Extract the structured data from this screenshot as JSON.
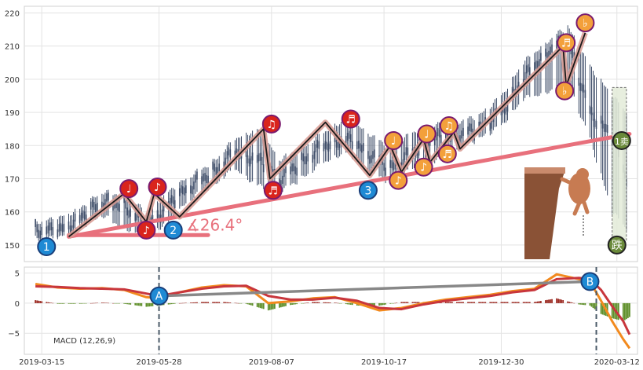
{
  "colors": {
    "panel_bg": "#ffffff",
    "grid": "#e3e3e3",
    "candle": "#3b4a66",
    "trend_line": "#e8707c",
    "zigzag": "#1a1a1a",
    "zigzag_shade": "#d89a92",
    "red_marker": "#d9241c",
    "orange_marker": "#f3a03b",
    "blue_marker": "#1f8ad4",
    "marker_border": "#7a1a6e",
    "green_marker": "#6a8a3a",
    "macd_line": "#f28a1e",
    "signal_line": "#c8363c",
    "hist_pos": "#9c2a22",
    "hist_neg": "#5f8f2a",
    "divergence_line": "#888888",
    "vline": "#4a5a68",
    "rect_fill": "#e3ecd9",
    "bear_brown": "#8a5236"
  },
  "chart_data": [
    {
      "type": "candlestick",
      "panel": "price",
      "ylim": [
        145,
        222
      ],
      "yticks": [
        150,
        160,
        170,
        180,
        190,
        200,
        210,
        220
      ],
      "ytick_labels": [
        "150",
        "160",
        "170",
        "180",
        "190",
        "200",
        "210",
        "220"
      ],
      "xlim": [
        "2019-03-04",
        "2020-03-25"
      ],
      "x_dates": [
        "2019-03-11",
        "2019-03-25",
        "2019-04-08",
        "2019-04-22",
        "2019-05-06",
        "2019-05-20",
        "2019-06-03",
        "2019-06-17",
        "2019-07-01",
        "2019-07-15",
        "2019-07-29",
        "2019-08-12",
        "2019-08-26",
        "2019-09-09",
        "2019-09-23",
        "2019-10-07",
        "2019-10-21",
        "2019-11-04",
        "2019-11-18",
        "2019-12-02",
        "2019-12-16",
        "2019-12-30",
        "2020-01-13",
        "2020-01-27",
        "2020-02-10",
        "2020-02-24",
        "2020-03-09",
        "2020-03-18"
      ],
      "close": [
        155,
        154,
        158,
        163,
        162,
        156,
        162,
        168,
        172,
        178,
        176,
        170,
        175,
        180,
        182,
        178,
        173,
        178,
        182,
        183,
        185,
        190,
        200,
        208,
        212,
        190,
        183,
        170
      ],
      "high": [
        157,
        158,
        161,
        166,
        165,
        160,
        166,
        171,
        175,
        182,
        185,
        176,
        179,
        184,
        188,
        184,
        179,
        184,
        186,
        187,
        189,
        195,
        205,
        211,
        216,
        204,
        195,
        190
      ],
      "low": [
        152,
        152,
        155,
        159,
        155,
        153,
        157,
        164,
        168,
        173,
        168,
        166,
        170,
        175,
        178,
        172,
        169,
        173,
        175,
        179,
        182,
        186,
        194,
        196,
        199,
        182,
        160,
        155
      ],
      "trend_line": [
        {
          "x": "2019-04-01",
          "y": 152.5
        },
        {
          "x": "2020-03-20",
          "y": 183.5
        }
      ],
      "flat_line": [
        {
          "x": "2019-04-01",
          "y": 153.0
        },
        {
          "x": "2019-06-28",
          "y": 153.0
        }
      ],
      "angle_label": "∡26.4°",
      "angle_anchor": {
        "x": "2019-06-14",
        "y": 154.3
      },
      "zigzag": [
        {
          "x": "2019-04-01",
          "y": 152.5
        },
        {
          "x": "2019-05-06",
          "y": 165.5
        },
        {
          "x": "2019-05-20",
          "y": 157
        },
        {
          "x": "2019-05-25",
          "y": 165.5
        },
        {
          "x": "2019-06-10",
          "y": 158.5
        },
        {
          "x": "2019-08-02",
          "y": 185
        },
        {
          "x": "2019-08-06",
          "y": 170
        },
        {
          "x": "2019-09-10",
          "y": 187
        },
        {
          "x": "2019-10-08",
          "y": 171
        },
        {
          "x": "2019-10-21",
          "y": 180
        },
        {
          "x": "2019-10-28",
          "y": 172
        },
        {
          "x": "2019-11-11",
          "y": 182
        },
        {
          "x": "2019-11-15",
          "y": 175
        },
        {
          "x": "2019-11-30",
          "y": 184
        },
        {
          "x": "2019-12-04",
          "y": 179
        },
        {
          "x": "2020-02-07",
          "y": 210
        },
        {
          "x": "2020-02-09",
          "y": 198
        },
        {
          "x": "2020-02-21",
          "y": 214
        }
      ],
      "markers": [
        {
          "x": "2019-03-18",
          "y": 149.5,
          "kind": "blue",
          "label": "1"
        },
        {
          "x": "2019-05-09",
          "y": 167,
          "kind": "red",
          "label": "♩"
        },
        {
          "x": "2019-05-20",
          "y": 154.5,
          "kind": "red",
          "label": "♪"
        },
        {
          "x": "2019-05-27",
          "y": 167.5,
          "kind": "red",
          "label": "♪"
        },
        {
          "x": "2019-06-06",
          "y": 154.5,
          "kind": "blue",
          "label": "2"
        },
        {
          "x": "2019-08-07",
          "y": 186.5,
          "kind": "red",
          "label": "♫"
        },
        {
          "x": "2019-08-08",
          "y": 166.5,
          "kind": "red",
          "label": "♬"
        },
        {
          "x": "2019-09-26",
          "y": 188,
          "kind": "red",
          "label": "♬"
        },
        {
          "x": "2019-10-07",
          "y": 166.5,
          "kind": "blue",
          "label": "3"
        },
        {
          "x": "2019-10-23",
          "y": 181.5,
          "kind": "orange",
          "label": "♩"
        },
        {
          "x": "2019-10-26",
          "y": 169.5,
          "kind": "orange",
          "label": "♪"
        },
        {
          "x": "2019-11-13",
          "y": 183.5,
          "kind": "orange",
          "label": "♩"
        },
        {
          "x": "2019-11-11",
          "y": 173.5,
          "kind": "orange",
          "label": "♪"
        },
        {
          "x": "2019-11-27",
          "y": 186,
          "kind": "orange",
          "label": "♫"
        },
        {
          "x": "2019-11-26",
          "y": 177.5,
          "kind": "orange",
          "label": "♬"
        },
        {
          "x": "2020-02-09",
          "y": 211,
          "kind": "orange",
          "label": "♬"
        },
        {
          "x": "2020-02-08",
          "y": 196.5,
          "kind": "orange",
          "label": "♭"
        },
        {
          "x": "2020-02-21",
          "y": 217,
          "kind": "orange",
          "label": "♭"
        },
        {
          "x": "2020-03-15",
          "y": 181.5,
          "kind": "green",
          "label": "1卖"
        },
        {
          "x": "2020-03-12",
          "y": 150,
          "kind": "green",
          "label": "跌"
        }
      ],
      "sell_box": {
        "x0": "2020-03-09",
        "x1": "2020-03-18",
        "y0": 151.5,
        "y1": 197.5
      }
    },
    {
      "type": "macd",
      "panel": "indicator",
      "label": "MACD (12,26,9)",
      "ylim": [
        -8.5,
        6
      ],
      "yticks": [
        -5,
        0,
        5
      ],
      "ytick_labels": [
        "−5",
        "0",
        "5"
      ],
      "x": [
        "2019-03-11",
        "2019-03-25",
        "2019-04-08",
        "2019-04-22",
        "2019-05-06",
        "2019-05-20",
        "2019-05-28",
        "2019-06-10",
        "2019-06-24",
        "2019-07-08",
        "2019-07-22",
        "2019-08-05",
        "2019-08-19",
        "2019-09-02",
        "2019-09-16",
        "2019-09-30",
        "2019-10-14",
        "2019-10-28",
        "2019-11-11",
        "2019-11-25",
        "2019-12-09",
        "2019-12-23",
        "2020-01-06",
        "2020-01-20",
        "2020-02-03",
        "2020-02-17",
        "2020-02-24",
        "2020-03-02",
        "2020-03-09",
        "2020-03-16",
        "2020-03-20"
      ],
      "macd": [
        3.2,
        2.6,
        2.4,
        2.5,
        2.2,
        1.0,
        0.8,
        1.8,
        2.6,
        3.0,
        2.8,
        0.0,
        0.3,
        0.8,
        1.0,
        0.0,
        -1.2,
        -0.8,
        0.0,
        0.6,
        1.0,
        1.4,
        2.0,
        2.4,
        4.8,
        4.0,
        3.6,
        0.4,
        -3.0,
        -6.0,
        -7.5
      ],
      "signal": [
        2.8,
        2.7,
        2.5,
        2.4,
        2.3,
        1.6,
        1.2,
        1.8,
        2.4,
        2.8,
        2.9,
        1.2,
        0.6,
        0.6,
        0.9,
        0.4,
        -0.8,
        -1.0,
        -0.2,
        0.4,
        0.8,
        1.2,
        1.8,
        2.2,
        4.0,
        4.2,
        4.0,
        2.2,
        -0.5,
        -3.0,
        -5.2
      ],
      "histogram": [
        0.5,
        -0.1,
        -0.1,
        0.1,
        -0.1,
        -0.6,
        -0.4,
        0.0,
        0.2,
        0.2,
        -0.1,
        -1.2,
        -0.3,
        0.2,
        0.1,
        -0.4,
        -0.4,
        0.2,
        0.2,
        0.2,
        0.2,
        0.2,
        0.2,
        0.2,
        0.8,
        -0.2,
        -0.4,
        -1.8,
        -2.5,
        -3.0,
        -2.3
      ],
      "divergence": [
        {
          "x": "2019-05-28",
          "y": 1.2
        },
        {
          "x": "2020-02-24",
          "y": 3.6
        }
      ],
      "div_markers": [
        {
          "x": "2019-05-28",
          "y": 1.2,
          "label": "A"
        },
        {
          "x": "2020-02-24",
          "y": 3.6,
          "label": "B"
        }
      ],
      "vlines": [
        "2019-05-28",
        "2020-02-28"
      ]
    }
  ],
  "xticks": [
    "2019-03-15",
    "2019-05-28",
    "2019-08-07",
    "2019-10-17",
    "2019-12-30",
    "2020-03-12"
  ]
}
